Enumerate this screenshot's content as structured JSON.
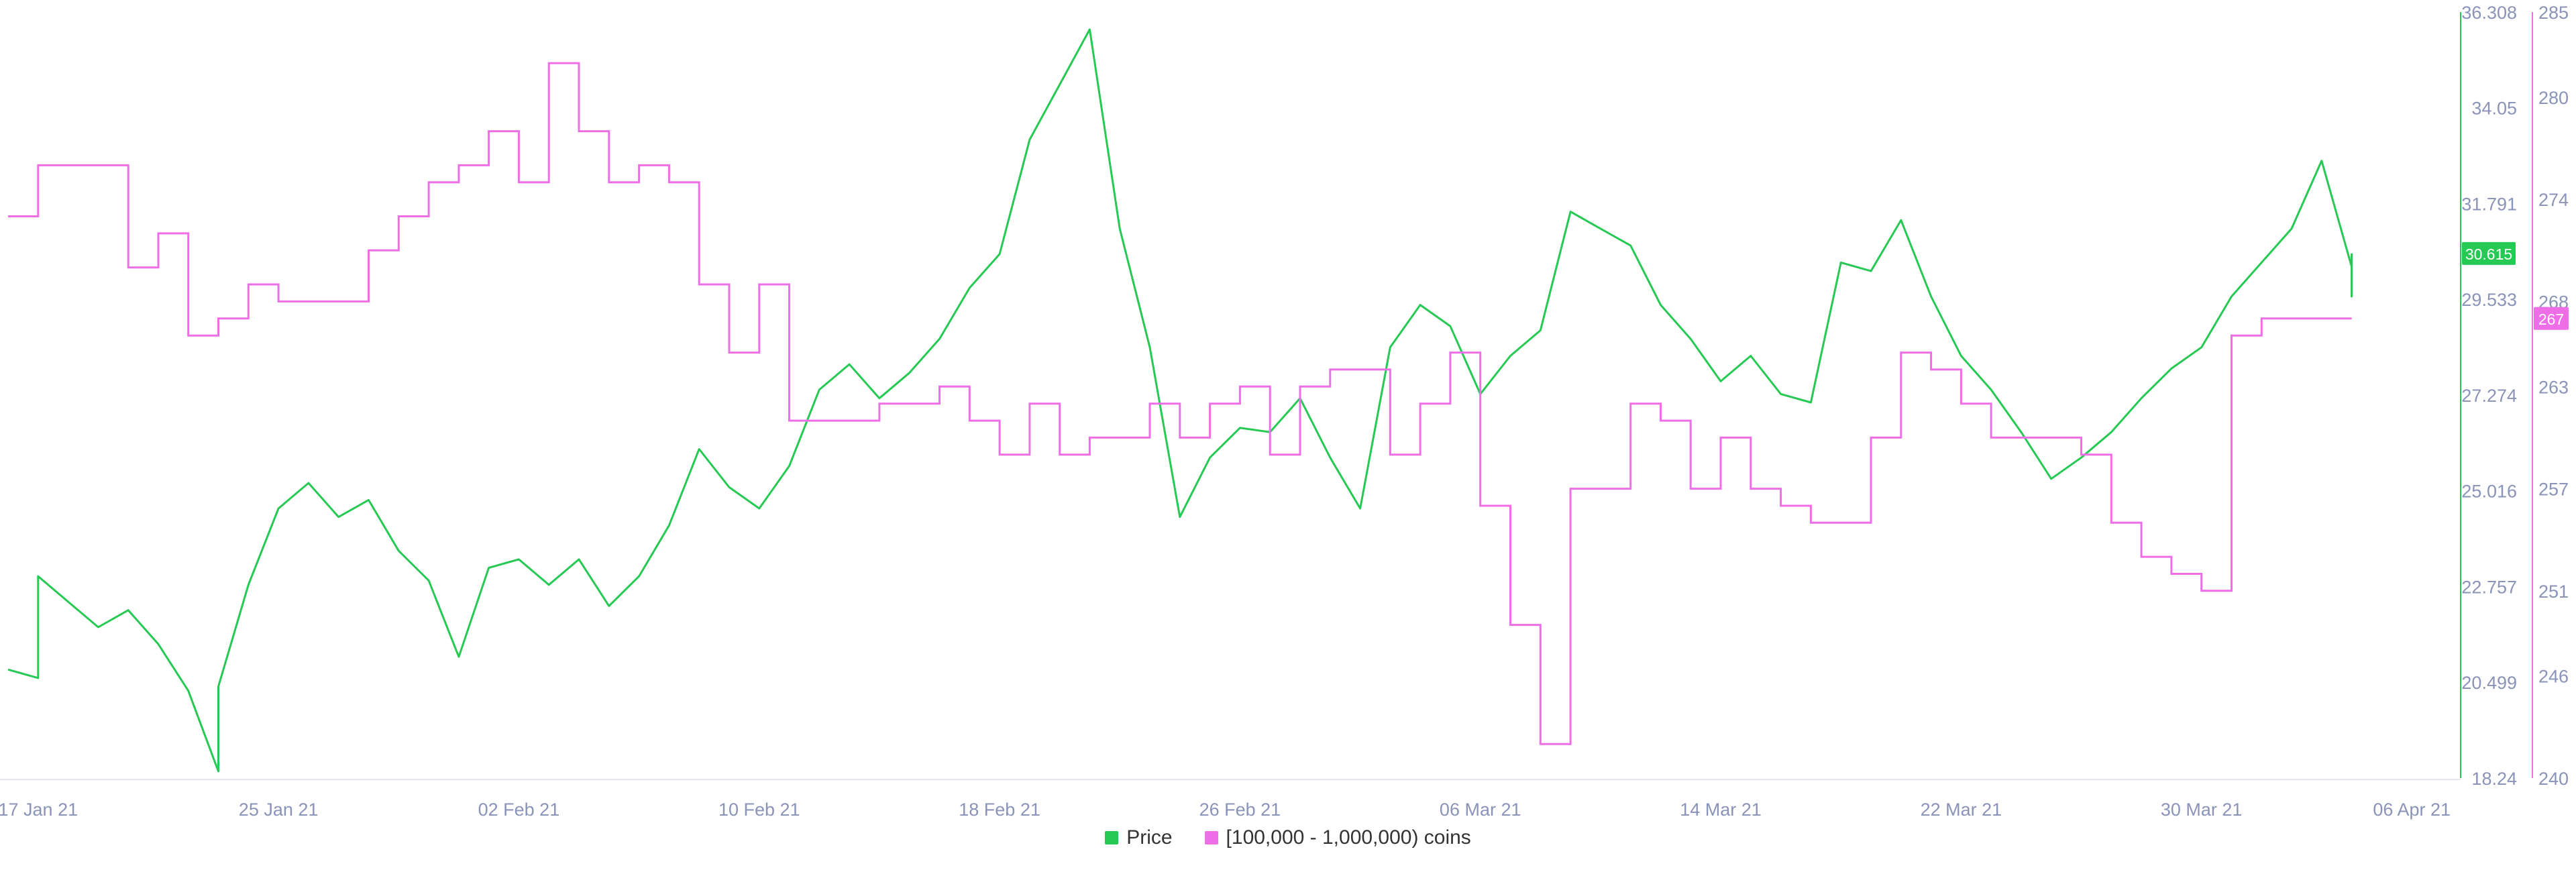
{
  "chart_data": {
    "type": "line",
    "title": "",
    "xlabel": "",
    "ylabel": "",
    "x_range": [
      "2021-01-16",
      "2021-04-07"
    ],
    "x_ticks": [
      {
        "date": "2021-01-17",
        "label": "17 Jan 21"
      },
      {
        "date": "2021-01-25",
        "label": "25 Jan 21"
      },
      {
        "date": "2021-02-02",
        "label": "02 Feb 21"
      },
      {
        "date": "2021-02-10",
        "label": "10 Feb 21"
      },
      {
        "date": "2021-02-18",
        "label": "18 Feb 21"
      },
      {
        "date": "2021-02-26",
        "label": "26 Feb 21"
      },
      {
        "date": "2021-03-06",
        "label": "06 Mar 21"
      },
      {
        "date": "2021-03-14",
        "label": "14 Mar 21"
      },
      {
        "date": "2021-03-22",
        "label": "22 Mar 21"
      },
      {
        "date": "2021-03-30",
        "label": "30 Mar 21"
      },
      {
        "date": "2021-04-06",
        "label": "06 Apr 21"
      }
    ],
    "y_left": {
      "range": [
        18.24,
        36.308
      ],
      "ticks": [
        "18.24",
        "20.499",
        "22.757",
        "25.016",
        "27.274",
        "29.533",
        "31.791",
        "34.05",
        "36.308"
      ]
    },
    "y_right": {
      "range": [
        240,
        285
      ],
      "ticks": [
        "240",
        "246",
        "251",
        "257",
        "263",
        "268",
        "274",
        "280",
        "285"
      ]
    },
    "grid": false,
    "legend_position": "bottom-center",
    "series": [
      {
        "name": "Price",
        "color": "#26c953",
        "axis": "left",
        "current_label": "30.615",
        "points": [
          [
            "2021-01-16",
            20.8
          ],
          [
            "2021-01-17",
            20.6
          ],
          [
            "2021-01-17",
            23.0
          ],
          [
            "2021-01-18",
            22.4
          ],
          [
            "2021-01-19",
            21.8
          ],
          [
            "2021-01-20",
            22.2
          ],
          [
            "2021-01-21",
            21.4
          ],
          [
            "2021-01-22",
            20.3
          ],
          [
            "2021-01-23",
            18.4
          ],
          [
            "2021-01-23",
            20.4
          ],
          [
            "2021-01-24",
            22.8
          ],
          [
            "2021-01-25",
            24.6
          ],
          [
            "2021-01-26",
            25.2
          ],
          [
            "2021-01-27",
            24.4
          ],
          [
            "2021-01-28",
            24.8
          ],
          [
            "2021-01-29",
            23.6
          ],
          [
            "2021-01-30",
            22.9
          ],
          [
            "2021-01-31",
            21.1
          ],
          [
            "2021-02-01",
            23.2
          ],
          [
            "2021-02-02",
            23.4
          ],
          [
            "2021-02-03",
            22.8
          ],
          [
            "2021-02-04",
            23.4
          ],
          [
            "2021-02-05",
            22.3
          ],
          [
            "2021-02-06",
            23.0
          ],
          [
            "2021-02-07",
            24.2
          ],
          [
            "2021-02-08",
            26.0
          ],
          [
            "2021-02-09",
            25.1
          ],
          [
            "2021-02-10",
            24.6
          ],
          [
            "2021-02-11",
            25.6
          ],
          [
            "2021-02-12",
            27.4
          ],
          [
            "2021-02-13",
            28.0
          ],
          [
            "2021-02-14",
            27.2
          ],
          [
            "2021-02-15",
            27.8
          ],
          [
            "2021-02-16",
            28.6
          ],
          [
            "2021-02-17",
            29.8
          ],
          [
            "2021-02-18",
            30.6
          ],
          [
            "2021-02-19",
            33.3
          ],
          [
            "2021-02-20",
            34.6
          ],
          [
            "2021-02-21",
            35.9
          ],
          [
            "2021-02-22",
            31.2
          ],
          [
            "2021-02-23",
            28.4
          ],
          [
            "2021-02-24",
            24.4
          ],
          [
            "2021-02-25",
            25.8
          ],
          [
            "2021-02-26",
            26.5
          ],
          [
            "2021-02-27",
            26.4
          ],
          [
            "2021-02-28",
            27.2
          ],
          [
            "2021-03-01",
            25.8
          ],
          [
            "2021-03-02",
            24.6
          ],
          [
            "2021-03-03",
            28.4
          ],
          [
            "2021-03-04",
            29.4
          ],
          [
            "2021-03-05",
            28.9
          ],
          [
            "2021-03-06",
            27.3
          ],
          [
            "2021-03-07",
            28.2
          ],
          [
            "2021-03-08",
            28.8
          ],
          [
            "2021-03-09",
            31.6
          ],
          [
            "2021-03-10",
            31.2
          ],
          [
            "2021-03-11",
            30.8
          ],
          [
            "2021-03-12",
            29.4
          ],
          [
            "2021-03-13",
            28.6
          ],
          [
            "2021-03-14",
            27.6
          ],
          [
            "2021-03-15",
            28.2
          ],
          [
            "2021-03-16",
            27.3
          ],
          [
            "2021-03-17",
            27.1
          ],
          [
            "2021-03-18",
            30.4
          ],
          [
            "2021-03-19",
            30.2
          ],
          [
            "2021-03-20",
            31.4
          ],
          [
            "2021-03-21",
            29.6
          ],
          [
            "2021-03-22",
            28.2
          ],
          [
            "2021-03-23",
            27.4
          ],
          [
            "2021-03-24",
            26.4
          ],
          [
            "2021-03-25",
            25.3
          ],
          [
            "2021-03-26",
            25.8
          ],
          [
            "2021-03-27",
            26.4
          ],
          [
            "2021-03-28",
            27.2
          ],
          [
            "2021-03-29",
            27.9
          ],
          [
            "2021-03-30",
            28.4
          ],
          [
            "2021-03-31",
            29.6
          ],
          [
            "2021-04-01",
            30.4
          ],
          [
            "2021-04-02",
            31.2
          ],
          [
            "2021-04-03",
            32.8
          ],
          [
            "2021-04-04",
            30.3
          ],
          [
            "2021-04-04",
            29.6
          ],
          [
            "2021-04-04",
            30.615
          ]
        ]
      },
      {
        "name": "[100,000  - 1,000,000) coins",
        "color": "#ee6ee8",
        "axis": "right",
        "current_label": "267",
        "steps": [
          [
            "2021-01-16",
            273
          ],
          [
            "2021-01-17",
            276
          ],
          [
            "2021-01-20",
            270
          ],
          [
            "2021-01-21",
            272
          ],
          [
            "2021-01-22",
            266
          ],
          [
            "2021-01-23",
            267
          ],
          [
            "2021-01-24",
            269
          ],
          [
            "2021-01-25",
            268
          ],
          [
            "2021-01-28",
            271
          ],
          [
            "2021-01-29",
            273
          ],
          [
            "2021-01-30",
            275
          ],
          [
            "2021-01-31",
            276
          ],
          [
            "2021-02-01",
            278
          ],
          [
            "2021-02-02",
            275
          ],
          [
            "2021-02-03",
            282
          ],
          [
            "2021-02-04",
            278
          ],
          [
            "2021-02-05",
            275
          ],
          [
            "2021-02-06",
            276
          ],
          [
            "2021-02-07",
            275
          ],
          [
            "2021-02-08",
            269
          ],
          [
            "2021-02-09",
            265
          ],
          [
            "2021-02-10",
            269
          ],
          [
            "2021-02-11",
            261
          ],
          [
            "2021-02-14",
            262
          ],
          [
            "2021-02-16",
            263
          ],
          [
            "2021-02-17",
            261
          ],
          [
            "2021-02-18",
            259
          ],
          [
            "2021-02-19",
            262
          ],
          [
            "2021-02-20",
            259
          ],
          [
            "2021-02-21",
            260
          ],
          [
            "2021-02-23",
            262
          ],
          [
            "2021-02-24",
            260
          ],
          [
            "2021-02-25",
            262
          ],
          [
            "2021-02-26",
            263
          ],
          [
            "2021-02-27",
            259
          ],
          [
            "2021-02-28",
            263
          ],
          [
            "2021-03-01",
            264
          ],
          [
            "2021-03-03",
            259
          ],
          [
            "2021-03-04",
            262
          ],
          [
            "2021-03-05",
            265
          ],
          [
            "2021-03-06",
            256
          ],
          [
            "2021-03-07",
            249
          ],
          [
            "2021-03-08",
            242
          ],
          [
            "2021-03-09",
            257
          ],
          [
            "2021-03-11",
            262
          ],
          [
            "2021-03-12",
            261
          ],
          [
            "2021-03-13",
            257
          ],
          [
            "2021-03-14",
            260
          ],
          [
            "2021-03-15",
            257
          ],
          [
            "2021-03-16",
            256
          ],
          [
            "2021-03-17",
            255
          ],
          [
            "2021-03-19",
            260
          ],
          [
            "2021-03-20",
            265
          ],
          [
            "2021-03-21",
            264
          ],
          [
            "2021-03-22",
            262
          ],
          [
            "2021-03-23",
            260
          ],
          [
            "2021-03-26",
            259
          ],
          [
            "2021-03-27",
            255
          ],
          [
            "2021-03-28",
            253
          ],
          [
            "2021-03-29",
            252
          ],
          [
            "2021-03-30",
            251
          ],
          [
            "2021-03-31",
            266
          ],
          [
            "2021-04-01",
            267
          ],
          [
            "2021-04-02",
            267
          ]
        ]
      }
    ]
  }
}
